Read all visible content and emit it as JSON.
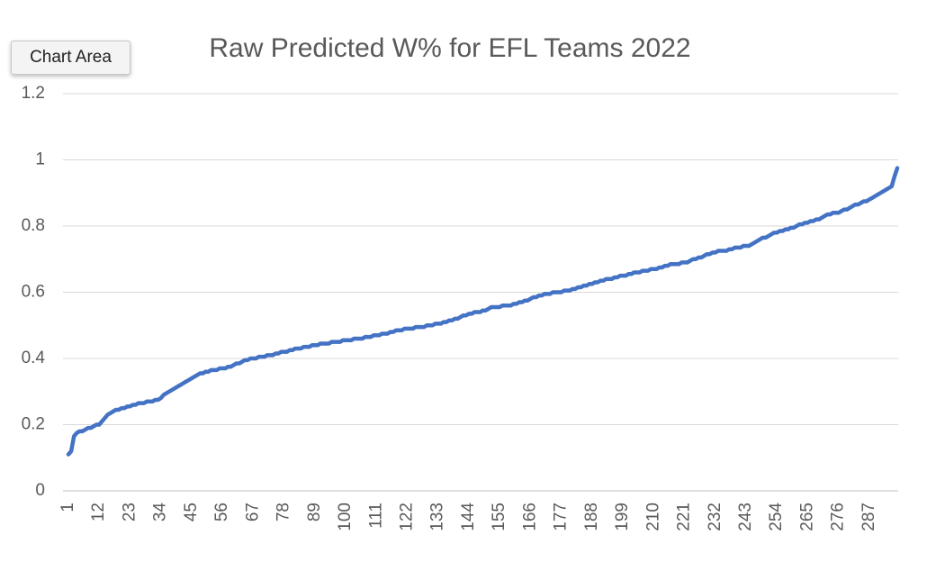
{
  "chart_data": {
    "type": "line",
    "title": "Raw Predicted W% for EFL Teams 2022",
    "tooltip": "Chart Area",
    "categories": [
      "1",
      null,
      null,
      null,
      null,
      null,
      null,
      null,
      null,
      null,
      null,
      "12",
      null,
      null,
      null,
      null,
      null,
      null,
      null,
      null,
      null,
      null,
      "23",
      null,
      null,
      null,
      null,
      null,
      null,
      null,
      null,
      null,
      null,
      "34",
      null,
      null,
      null,
      null,
      null,
      null,
      null,
      null,
      null,
      null,
      "45",
      null,
      null,
      null,
      null,
      null,
      null,
      null,
      null,
      null,
      null,
      "56",
      null,
      null,
      null,
      null,
      null,
      null,
      null,
      null,
      null,
      null,
      "67",
      null,
      null,
      null,
      null,
      null,
      null,
      null,
      null,
      null,
      null,
      "78",
      null,
      null,
      null,
      null,
      null,
      null,
      null,
      null,
      null,
      null,
      "89",
      null,
      null,
      null,
      null,
      null,
      null,
      null,
      null,
      null,
      null,
      "100",
      null,
      null,
      null,
      null,
      null,
      null,
      null,
      null,
      null,
      null,
      "111",
      null,
      null,
      null,
      null,
      null,
      null,
      null,
      null,
      null,
      null,
      "122",
      null,
      null,
      null,
      null,
      null,
      null,
      null,
      null,
      null,
      null,
      "133",
      null,
      null,
      null,
      null,
      null,
      null,
      null,
      null,
      null,
      null,
      "144",
      null,
      null,
      null,
      null,
      null,
      null,
      null,
      null,
      null,
      null,
      "155",
      null,
      null,
      null,
      null,
      null,
      null,
      null,
      null,
      null,
      null,
      "166",
      null,
      null,
      null,
      null,
      null,
      null,
      null,
      null,
      null,
      null,
      "177",
      null,
      null,
      null,
      null,
      null,
      null,
      null,
      null,
      null,
      null,
      "188",
      null,
      null,
      null,
      null,
      null,
      null,
      null,
      null,
      null,
      null,
      "199",
      null,
      null,
      null,
      null,
      null,
      null,
      null,
      null,
      null,
      null,
      "210",
      null,
      null,
      null,
      null,
      null,
      null,
      null,
      null,
      null,
      null,
      "221",
      null,
      null,
      null,
      null,
      null,
      null,
      null,
      null,
      null,
      null,
      "232",
      null,
      null,
      null,
      null,
      null,
      null,
      null,
      null,
      null,
      null,
      "243",
      null,
      null,
      null,
      null,
      null,
      null,
      null,
      null,
      null,
      null,
      "254",
      null,
      null,
      null,
      null,
      null,
      null,
      null,
      null,
      null,
      null,
      "265",
      null,
      null,
      null,
      null,
      null,
      null,
      null,
      null,
      null,
      null,
      "276",
      null,
      null,
      null,
      null,
      null,
      null,
      null,
      null,
      null,
      null,
      "287",
      null,
      null,
      null,
      null,
      null,
      null,
      null,
      null,
      null,
      null
    ],
    "values": [
      0.11,
      0.12,
      0.165,
      0.175,
      0.18,
      0.18,
      0.185,
      0.19,
      0.19,
      0.195,
      0.2,
      0.2,
      0.21,
      0.22,
      0.23,
      0.235,
      0.24,
      0.245,
      0.245,
      0.25,
      0.25,
      0.255,
      0.255,
      0.26,
      0.26,
      0.265,
      0.265,
      0.265,
      0.27,
      0.27,
      0.27,
      0.275,
      0.275,
      0.28,
      0.29,
      0.295,
      0.3,
      0.305,
      0.31,
      0.315,
      0.32,
      0.325,
      0.33,
      0.335,
      0.34,
      0.345,
      0.35,
      0.355,
      0.355,
      0.36,
      0.36,
      0.365,
      0.365,
      0.365,
      0.37,
      0.37,
      0.37,
      0.375,
      0.375,
      0.38,
      0.385,
      0.385,
      0.39,
      0.395,
      0.395,
      0.4,
      0.4,
      0.4,
      0.405,
      0.405,
      0.405,
      0.41,
      0.41,
      0.41,
      0.415,
      0.415,
      0.42,
      0.42,
      0.42,
      0.425,
      0.425,
      0.43,
      0.43,
      0.43,
      0.435,
      0.435,
      0.435,
      0.44,
      0.44,
      0.44,
      0.445,
      0.445,
      0.445,
      0.445,
      0.45,
      0.45,
      0.45,
      0.45,
      0.455,
      0.455,
      0.455,
      0.455,
      0.46,
      0.46,
      0.46,
      0.46,
      0.465,
      0.465,
      0.465,
      0.47,
      0.47,
      0.47,
      0.475,
      0.475,
      0.475,
      0.48,
      0.48,
      0.485,
      0.485,
      0.485,
      0.49,
      0.49,
      0.49,
      0.49,
      0.495,
      0.495,
      0.495,
      0.495,
      0.5,
      0.5,
      0.5,
      0.505,
      0.505,
      0.505,
      0.51,
      0.51,
      0.515,
      0.515,
      0.52,
      0.52,
      0.525,
      0.53,
      0.53,
      0.535,
      0.535,
      0.54,
      0.54,
      0.54,
      0.545,
      0.545,
      0.55,
      0.555,
      0.555,
      0.555,
      0.555,
      0.56,
      0.56,
      0.56,
      0.56,
      0.565,
      0.565,
      0.57,
      0.57,
      0.575,
      0.575,
      0.58,
      0.585,
      0.585,
      0.59,
      0.59,
      0.595,
      0.595,
      0.595,
      0.6,
      0.6,
      0.6,
      0.6,
      0.605,
      0.605,
      0.605,
      0.61,
      0.61,
      0.615,
      0.615,
      0.62,
      0.62,
      0.625,
      0.625,
      0.63,
      0.63,
      0.635,
      0.635,
      0.64,
      0.64,
      0.64,
      0.645,
      0.645,
      0.65,
      0.65,
      0.65,
      0.655,
      0.655,
      0.66,
      0.66,
      0.66,
      0.665,
      0.665,
      0.665,
      0.67,
      0.67,
      0.67,
      0.675,
      0.675,
      0.68,
      0.68,
      0.685,
      0.685,
      0.685,
      0.685,
      0.69,
      0.69,
      0.69,
      0.695,
      0.7,
      0.7,
      0.705,
      0.705,
      0.71,
      0.715,
      0.715,
      0.72,
      0.72,
      0.725,
      0.725,
      0.725,
      0.725,
      0.73,
      0.73,
      0.735,
      0.735,
      0.735,
      0.74,
      0.74,
      0.74,
      0.745,
      0.75,
      0.755,
      0.76,
      0.765,
      0.765,
      0.77,
      0.775,
      0.78,
      0.78,
      0.785,
      0.785,
      0.79,
      0.79,
      0.795,
      0.795,
      0.8,
      0.805,
      0.805,
      0.81,
      0.81,
      0.815,
      0.815,
      0.82,
      0.82,
      0.825,
      0.83,
      0.835,
      0.835,
      0.84,
      0.84,
      0.84,
      0.845,
      0.85,
      0.85,
      0.855,
      0.86,
      0.865,
      0.865,
      0.87,
      0.875,
      0.875,
      0.88,
      0.885,
      0.89,
      0.895,
      0.9,
      0.905,
      0.91,
      0.915,
      0.92,
      0.95,
      0.975
    ],
    "color": "#4472c4",
    "ylim": [
      0,
      1.2
    ],
    "yticks": [
      0,
      0.2,
      0.4,
      0.6,
      0.8,
      1,
      1.2
    ],
    "grid": true
  }
}
